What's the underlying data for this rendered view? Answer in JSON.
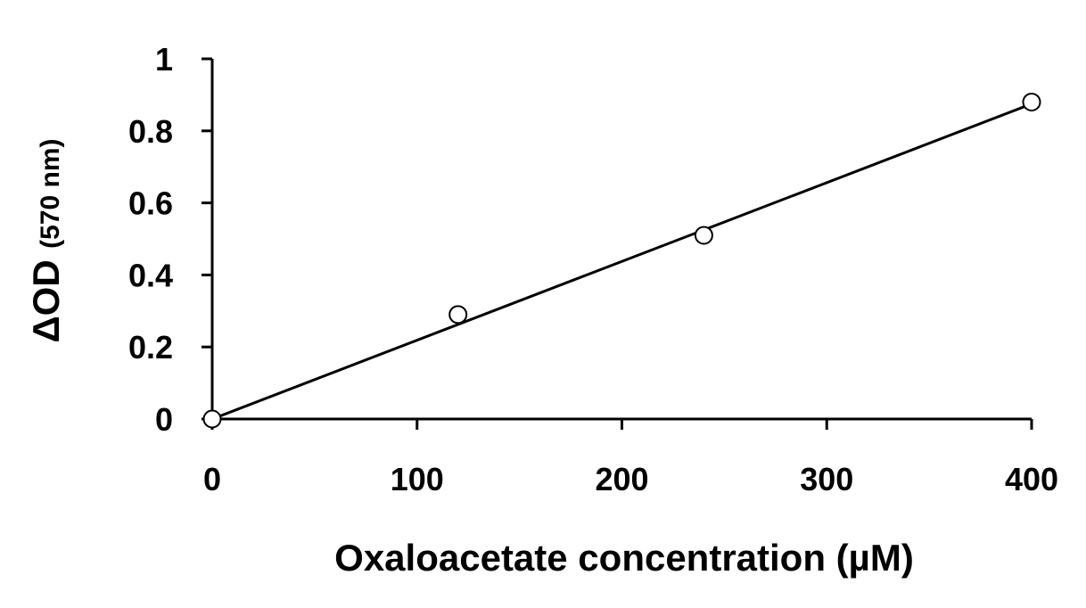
{
  "chart_data": {
    "type": "scatter",
    "title": "",
    "xlabel": "Oxaloacetate concentration (µM)",
    "ylabel_main": "ΔOD",
    "ylabel_sub": "(570 nm)",
    "xlim": [
      0,
      400
    ],
    "ylim": [
      0,
      1
    ],
    "x_ticks": [
      0,
      100,
      200,
      300,
      400
    ],
    "y_ticks": [
      0,
      0.2,
      0.4,
      0.6,
      0.8,
      1
    ],
    "x_tick_labels": [
      "0",
      "100",
      "200",
      "300",
      "400"
    ],
    "y_tick_labels": [
      "0",
      "0.2",
      "0.4",
      "0.6",
      "0.8",
      "1"
    ],
    "grid": false,
    "series": [
      {
        "x": [
          0,
          120,
          240,
          400
        ],
        "y": [
          0,
          0.29,
          0.51,
          0.88
        ],
        "marker": "open-circle"
      }
    ],
    "trendline": {
      "x": [
        0,
        400
      ],
      "y": [
        0,
        0.875
      ]
    },
    "colors": {
      "marker_stroke": "#000000",
      "marker_fill": "#ffffff",
      "line": "#000000"
    }
  }
}
